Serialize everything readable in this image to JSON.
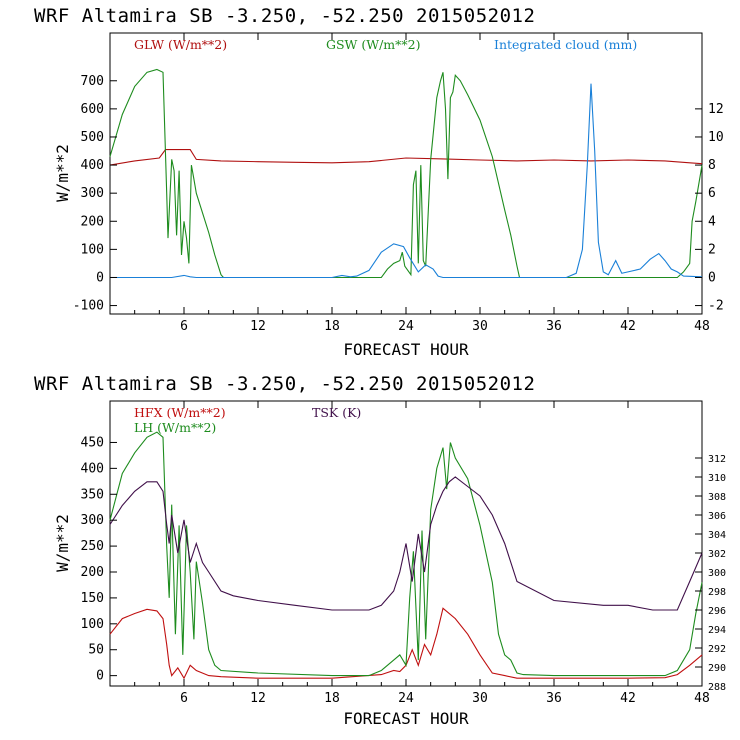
{
  "chart_data": [
    {
      "type": "line",
      "title": "WRF  Altamira  SB  -3.250, -52.250  2015052012",
      "xlabel": "FORECAST HOUR",
      "ylabel": "W/m**2",
      "xlim": [
        0,
        48
      ],
      "ylim": [
        -130,
        870
      ],
      "y2lim": [
        -2.6,
        17.4
      ],
      "xticks": [
        6,
        12,
        18,
        24,
        30,
        36,
        42,
        48
      ],
      "yticks": [
        -100,
        0,
        100,
        200,
        300,
        400,
        500,
        600,
        700
      ],
      "y2ticks": [
        -2,
        0,
        2,
        4,
        6,
        8,
        10,
        12
      ],
      "legend": [
        {
          "label": "GLW (W/m**2)",
          "color": "#b01010"
        },
        {
          "label": "GSW (W/m**2)",
          "color": "#1e8c1e"
        },
        {
          "label": "Integrated cloud (mm)",
          "color": "#1a80d8"
        }
      ],
      "series": [
        {
          "name": "GLW (W/m**2)",
          "axis": "left",
          "color": "#b01010",
          "x": [
            0,
            2,
            4,
            4.5,
            6.5,
            7,
            9,
            12,
            15,
            18,
            21,
            24,
            27,
            30,
            33,
            36,
            39,
            42,
            45,
            47,
            48
          ],
          "y": [
            400,
            415,
            425,
            455,
            455,
            420,
            415,
            412,
            410,
            408,
            412,
            425,
            422,
            418,
            415,
            418,
            415,
            418,
            415,
            408,
            405
          ]
        },
        {
          "name": "GSW (W/m**2)",
          "axis": "left",
          "color": "#1e8c1e",
          "x": [
            0,
            1,
            2,
            3,
            3.8,
            4.3,
            4.6,
            4.7,
            5,
            5.2,
            5.4,
            5.6,
            5.8,
            6,
            6.2,
            6.4,
            6.6,
            6.8,
            7,
            7.5,
            8,
            8.5,
            9,
            9.2,
            22,
            22.5,
            23,
            23.5,
            23.7,
            23.9,
            24.4,
            24.6,
            24.8,
            25,
            25.2,
            25.4,
            25.6,
            26,
            26.5,
            26.8,
            27,
            27.2,
            27.4,
            27.6,
            27.8,
            28,
            28.4,
            29,
            30,
            31,
            32,
            32.5,
            33,
            33.2,
            46,
            46.5,
            47,
            47.2,
            47.5,
            48
          ],
          "y": [
            430,
            580,
            680,
            730,
            740,
            730,
            300,
            140,
            420,
            380,
            150,
            380,
            80,
            200,
            140,
            50,
            400,
            350,
            300,
            230,
            160,
            80,
            10,
            0,
            0,
            30,
            50,
            60,
            90,
            40,
            10,
            330,
            380,
            50,
            400,
            60,
            40,
            420,
            640,
            700,
            730,
            600,
            350,
            640,
            660,
            720,
            700,
            650,
            560,
            430,
            240,
            150,
            40,
            0,
            0,
            20,
            50,
            200,
            270,
            400
          ]
        },
        {
          "name": "Integrated cloud (mm)",
          "axis": "right",
          "color": "#1a80d8",
          "x": [
            0,
            5,
            6,
            6.5,
            7,
            18,
            18.8,
            19.5,
            20,
            21,
            22,
            23,
            23.8,
            24.3,
            25,
            25.6,
            26.2,
            26.6,
            27,
            37,
            37.8,
            38.3,
            38.7,
            39,
            39.3,
            39.6,
            40,
            40.4,
            41,
            41.5,
            42,
            43,
            43.8,
            44.5,
            45,
            45.5,
            46,
            46.5,
            48
          ],
          "y": [
            0,
            0,
            0.15,
            0.05,
            0,
            0,
            0.15,
            0.05,
            0.1,
            0.5,
            1.8,
            2.4,
            2.2,
            1.4,
            0.4,
            0.9,
            0.6,
            0.1,
            0,
            0,
            0.3,
            2,
            8,
            13.8,
            9,
            2.5,
            0.4,
            0.2,
            1.2,
            0.3,
            0.4,
            0.6,
            1.3,
            1.7,
            1.2,
            0.6,
            0.4,
            0.1,
            0.05
          ]
        }
      ]
    },
    {
      "type": "line",
      "title": "WRF  Altamira  SB  -3.250, -52.250  2015052012",
      "xlabel": "FORECAST HOUR",
      "ylabel": "W/m**2",
      "xlim": [
        0,
        48
      ],
      "ylim": [
        -20,
        530
      ],
      "y2lim": [
        288,
        318
      ],
      "xticks": [
        6,
        12,
        18,
        24,
        30,
        36,
        42,
        48
      ],
      "yticks": [
        0,
        50,
        100,
        150,
        200,
        250,
        300,
        350,
        400,
        450
      ],
      "y2ticks": [
        288,
        290,
        292,
        294,
        296,
        298,
        300,
        302,
        304,
        306,
        308,
        310,
        312
      ],
      "legend": [
        {
          "label": "HFX (W/m**2)",
          "color": "#c01010"
        },
        {
          "label": "LH  (W/m**2)",
          "color": "#1e8c1e"
        },
        {
          "label": "TSK (K)",
          "color": "#40104a"
        }
      ],
      "series": [
        {
          "name": "HFX (W/m**2)",
          "axis": "left",
          "color": "#c01010",
          "x": [
            0,
            1,
            2,
            3,
            3.8,
            4.3,
            4.6,
            4.8,
            5,
            5.5,
            6,
            6.5,
            7,
            8,
            9,
            12,
            18,
            22,
            23,
            23.5,
            24,
            24.5,
            25,
            25.5,
            26,
            26.5,
            27,
            28,
            29,
            30,
            31,
            32,
            33,
            36,
            42,
            45,
            46,
            47,
            48
          ],
          "y": [
            80,
            110,
            120,
            128,
            125,
            110,
            60,
            20,
            0,
            15,
            -5,
            20,
            10,
            0,
            -2,
            -5,
            -5,
            2,
            10,
            8,
            20,
            50,
            20,
            60,
            40,
            80,
            130,
            110,
            80,
            40,
            5,
            0,
            -5,
            -5,
            -5,
            -4,
            2,
            20,
            40
          ]
        },
        {
          "name": "LH  (W/m**2)",
          "axis": "left",
          "color": "#1e8c1e",
          "x": [
            0,
            1,
            2,
            3,
            3.8,
            4.3,
            4.6,
            4.8,
            5,
            5.3,
            5.6,
            5.9,
            6.2,
            6.5,
            6.8,
            7,
            7.5,
            8,
            8.5,
            9,
            12,
            18,
            21,
            22,
            23,
            23.5,
            24,
            24.3,
            24.6,
            25,
            25.3,
            25.6,
            26,
            26.5,
            27,
            27.3,
            27.6,
            28,
            29,
            30,
            31,
            31.5,
            32,
            32.5,
            33,
            33.5,
            36,
            42,
            45,
            46,
            47,
            47.5,
            48
          ],
          "y": [
            300,
            390,
            430,
            460,
            470,
            460,
            250,
            150,
            330,
            80,
            290,
            40,
            290,
            200,
            70,
            220,
            140,
            50,
            20,
            10,
            5,
            0,
            0,
            10,
            30,
            40,
            20,
            150,
            240,
            30,
            280,
            70,
            320,
            400,
            440,
            360,
            450,
            420,
            380,
            290,
            180,
            80,
            40,
            30,
            5,
            2,
            0,
            0,
            0,
            10,
            50,
            120,
            180
          ]
        },
        {
          "name": "TSK (K)",
          "axis": "right",
          "color": "#40104a",
          "x": [
            0,
            1,
            2,
            3,
            3.8,
            4.3,
            4.6,
            4.8,
            5,
            5.5,
            6,
            6.5,
            7,
            7.5,
            8,
            9,
            10,
            12,
            15,
            18,
            21,
            22,
            23,
            23.5,
            24,
            24.5,
            25,
            25.5,
            26,
            26.5,
            27,
            27.5,
            28,
            29,
            30,
            31,
            32,
            33,
            36,
            40,
            42,
            44,
            46,
            47,
            48
          ],
          "y": [
            305,
            307,
            308.5,
            309.5,
            309.5,
            308.5,
            305,
            303,
            306,
            302,
            305.5,
            301,
            303,
            301,
            300,
            298,
            297.5,
            297,
            296.5,
            296,
            296,
            296.5,
            298,
            300,
            303,
            299,
            304,
            300,
            305,
            307,
            308.5,
            309.5,
            310,
            309,
            308,
            306,
            303,
            299,
            297,
            296.5,
            296.5,
            296,
            296,
            299,
            302
          ]
        }
      ]
    }
  ]
}
